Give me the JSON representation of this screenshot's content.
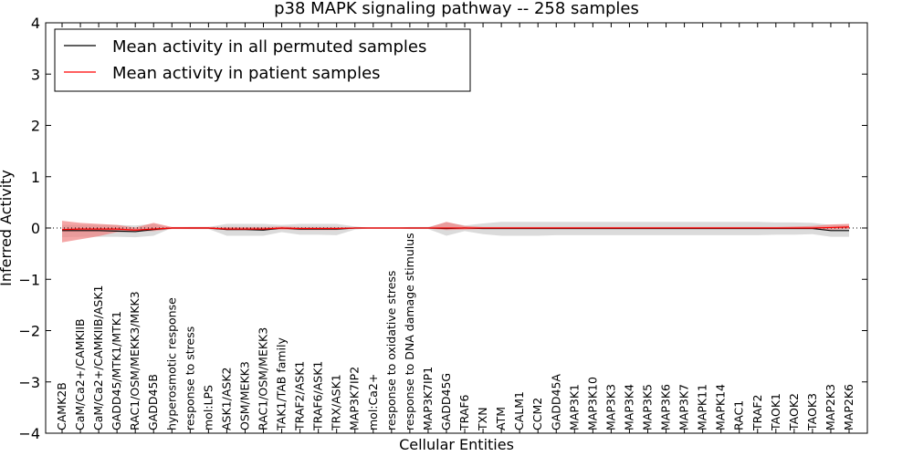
{
  "chart_data": {
    "type": "line",
    "title": "p38 MAPK signaling pathway -- 258 samples",
    "xlabel": "Cellular Entities",
    "ylabel": "Inferred Activity",
    "ylim": [
      -4,
      4
    ],
    "yticks": [
      -4,
      -3,
      -2,
      -1,
      0,
      1,
      2,
      3,
      4
    ],
    "ytick_labels": [
      "−4",
      "−3",
      "−2",
      "−1",
      "0",
      "1",
      "2",
      "3",
      "4"
    ],
    "legend_position": "top-left",
    "categories": [
      "CAMK2B",
      "CaM/Ca2+/CAMKIIB",
      "CaM/Ca2+/CAMKIIB/ASK1",
      "GADD45/MTK1/MTK1",
      "RAC1/OSM/MEKK3/MKK3",
      "GADD45B",
      "hyperosmotic response",
      "response to stress",
      "mol:LPS",
      "ASK1/ASK2",
      "OSM/MEKK3",
      "RAC1/OSM/MEKK3",
      "TAK1/TAB family",
      "TRAF2/ASK1",
      "TRAF6/ASK1",
      "TRX/ASK1",
      "MAP3K7IP2",
      "mol:Ca2+",
      "response to oxidative stress",
      "response to DNA damage stimulus",
      "MAP3K7IP1",
      "GADD45G",
      "TRAF6",
      "TXN",
      "ATM",
      "CALM1",
      "CCM2",
      "GADD45A",
      "MAP3K1",
      "MAP3K10",
      "MAP3K3",
      "MAP3K4",
      "MAP3K5",
      "MAP3K6",
      "MAP3K7",
      "MAPK11",
      "MAPK14",
      "RAC1",
      "TRAF2",
      "TAOK1",
      "TAOK2",
      "TAOK3",
      "MAP2K3",
      "MAP2K6"
    ],
    "series": [
      {
        "name": "Mean activity in all permuted samples",
        "color": "#000000",
        "band_color": "#c8c8c8",
        "values": [
          -0.05,
          -0.05,
          -0.05,
          -0.06,
          -0.07,
          -0.03,
          0.0,
          0.0,
          0.0,
          -0.03,
          -0.03,
          -0.04,
          0.0,
          -0.02,
          -0.02,
          -0.02,
          0.0,
          0.0,
          0.0,
          0.0,
          0.0,
          -0.01,
          0.0,
          -0.01,
          -0.01,
          -0.01,
          -0.01,
          -0.01,
          -0.01,
          -0.01,
          -0.01,
          -0.01,
          -0.01,
          -0.01,
          -0.01,
          -0.01,
          -0.01,
          -0.01,
          -0.01,
          -0.01,
          -0.01,
          -0.01,
          -0.05,
          -0.05
        ],
        "lower": [
          -0.18,
          -0.17,
          -0.17,
          -0.17,
          -0.18,
          -0.15,
          0.0,
          -0.02,
          -0.02,
          -0.15,
          -0.15,
          -0.15,
          -0.08,
          -0.13,
          -0.13,
          -0.14,
          -0.03,
          0.0,
          0.0,
          -0.02,
          -0.02,
          -0.15,
          -0.06,
          -0.12,
          -0.15,
          -0.15,
          -0.15,
          -0.14,
          -0.14,
          -0.14,
          -0.14,
          -0.14,
          -0.14,
          -0.14,
          -0.14,
          -0.14,
          -0.14,
          -0.14,
          -0.14,
          -0.13,
          -0.13,
          -0.12,
          -0.17,
          -0.17
        ],
        "upper": [
          0.06,
          0.06,
          0.06,
          0.06,
          0.05,
          0.08,
          0.0,
          0.02,
          0.02,
          0.08,
          0.08,
          0.08,
          0.06,
          0.08,
          0.08,
          0.08,
          0.03,
          0.0,
          0.0,
          0.02,
          0.02,
          0.11,
          0.05,
          0.09,
          0.12,
          0.12,
          0.12,
          0.12,
          0.12,
          0.12,
          0.12,
          0.12,
          0.12,
          0.12,
          0.12,
          0.12,
          0.12,
          0.12,
          0.12,
          0.11,
          0.11,
          0.1,
          0.06,
          0.06
        ]
      },
      {
        "name": "Mean activity in patient samples",
        "color": "#ff0000",
        "band_color": "#f08080",
        "values": [
          -0.03,
          -0.02,
          -0.02,
          -0.02,
          -0.04,
          -0.02,
          0.0,
          0.0,
          0.0,
          -0.02,
          -0.02,
          -0.02,
          0.0,
          -0.01,
          -0.01,
          -0.01,
          0.0,
          0.0,
          0.0,
          0.0,
          0.0,
          0.0,
          0.0,
          0.0,
          0.0,
          0.0,
          0.0,
          0.0,
          0.0,
          0.0,
          0.0,
          0.0,
          0.0,
          0.0,
          0.0,
          0.0,
          0.0,
          0.0,
          0.0,
          0.0,
          0.0,
          0.0,
          0.01,
          0.02
        ],
        "lower": [
          -0.28,
          -0.22,
          -0.16,
          -0.08,
          -0.06,
          -0.06,
          -0.02,
          -0.02,
          -0.02,
          -0.04,
          -0.04,
          -0.04,
          -0.03,
          -0.04,
          -0.04,
          -0.04,
          -0.01,
          -0.01,
          -0.01,
          -0.01,
          -0.01,
          -0.04,
          -0.03,
          -0.02,
          -0.02,
          -0.02,
          -0.02,
          -0.02,
          -0.02,
          -0.02,
          -0.02,
          -0.02,
          -0.02,
          -0.02,
          -0.02,
          -0.02,
          -0.02,
          -0.02,
          -0.02,
          -0.02,
          -0.02,
          -0.02,
          -0.03,
          -0.02
        ],
        "upper": [
          0.14,
          0.1,
          0.08,
          0.06,
          0.01,
          0.1,
          0.02,
          0.02,
          0.02,
          0.02,
          0.02,
          0.02,
          0.03,
          0.02,
          0.02,
          0.02,
          0.01,
          0.01,
          0.01,
          0.01,
          0.01,
          0.12,
          0.04,
          0.02,
          0.02,
          0.02,
          0.02,
          0.02,
          0.02,
          0.02,
          0.02,
          0.02,
          0.02,
          0.02,
          0.02,
          0.02,
          0.02,
          0.02,
          0.02,
          0.02,
          0.03,
          0.04,
          0.07,
          0.08
        ]
      }
    ]
  }
}
